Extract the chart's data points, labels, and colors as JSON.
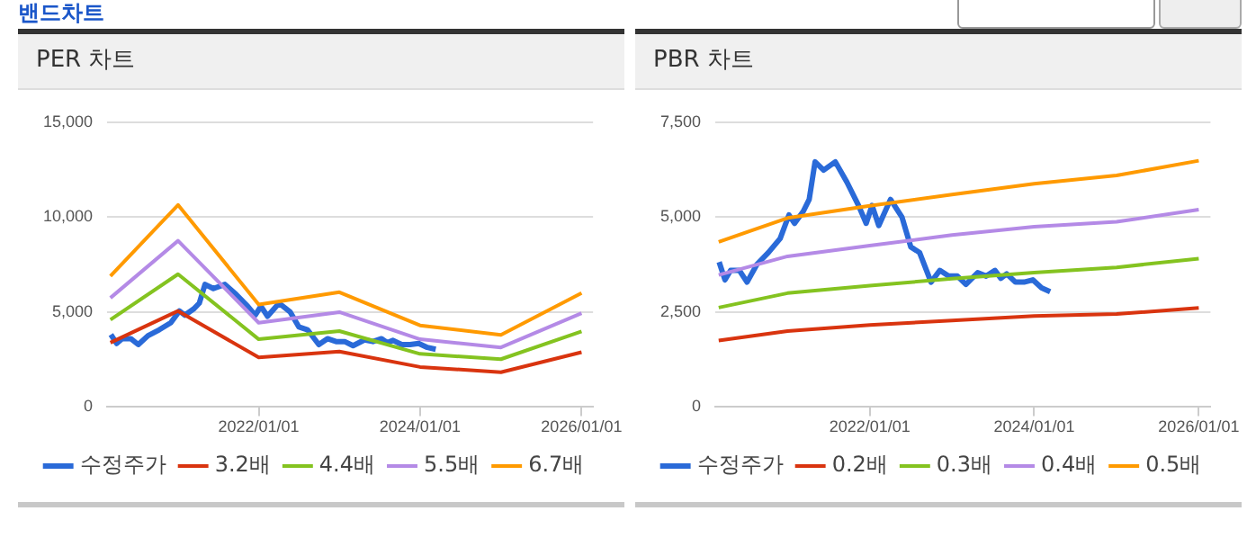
{
  "chart_data": [
    {
      "type": "line",
      "title": "PER 차트",
      "annotations": [
        "밴드차트"
      ],
      "xlim": [
        "2020-02-15",
        "2026-02-22"
      ],
      "xticks": [
        {
          "value": "2022-01-01",
          "label": "2022/01/01"
        },
        {
          "value": "2024-01-01",
          "label": "2024/01/01"
        },
        {
          "value": "2026-01-01",
          "label": "2026/01/01"
        }
      ],
      "ylim": [
        0,
        15000
      ],
      "yticks": [
        {
          "value": 0,
          "label": "0"
        },
        {
          "value": 5000,
          "label": "5,000"
        },
        {
          "value": 10000,
          "label": "10,000"
        },
        {
          "value": 15000,
          "label": "15,000"
        }
      ],
      "grid": "y",
      "legend": "bottom",
      "marker": "none",
      "line_style": "solid",
      "series": [
        {
          "name": "수정주가",
          "color": "#2a6ad8",
          "x": [
            "2020-03-03",
            "2020-03-29",
            "2020-04-23",
            "2020-06-01",
            "2020-07-05",
            "2020-08-18",
            "2020-10-08",
            "2020-11-29",
            "2021-01-07",
            "2021-02-01",
            "2021-03-12",
            "2021-04-07",
            "2021-05-03",
            "2021-06-10",
            "2021-08-01",
            "2021-09-21",
            "2021-11-12",
            "2021-12-16",
            "2022-01-11",
            "2022-02-10",
            "2022-04-03",
            "2022-05-24",
            "2022-07-02",
            "2022-08-10",
            "2022-09-30",
            "2022-11-08",
            "2022-12-17",
            "2023-01-25",
            "2023-03-04",
            "2023-04-25",
            "2023-06-02",
            "2023-07-11",
            "2023-08-06",
            "2023-09-01",
            "2023-10-10",
            "2023-11-17",
            "2023-12-26",
            "2024-02-03",
            "2024-03-12"
          ],
          "values": [
            3820,
            3350,
            3600,
            3600,
            3290,
            3760,
            4070,
            4440,
            5060,
            4840,
            5160,
            5470,
            6460,
            6240,
            6460,
            5930,
            5310,
            4840,
            5310,
            4780,
            5470,
            5000,
            4220,
            4070,
            3290,
            3600,
            3450,
            3450,
            3230,
            3540,
            3450,
            3600,
            3390,
            3510,
            3290,
            3290,
            3350,
            3140,
            3040
          ]
        },
        {
          "name": "3.2배",
          "color": "#d9340f",
          "x": [
            "2020-03-01",
            "2021-01-01",
            "2022-01-01",
            "2023-01-01",
            "2024-01-01",
            "2025-01-01",
            "2026-01-01"
          ],
          "values": [
            3390,
            5060,
            2610,
            2920,
            2110,
            1830,
            2890
          ]
        },
        {
          "name": "4.4배",
          "color": "#84c320",
          "x": [
            "2020-03-01",
            "2021-01-01",
            "2022-01-01",
            "2023-01-01",
            "2024-01-01",
            "2025-01-01",
            "2026-01-01"
          ],
          "values": [
            4600,
            7000,
            3570,
            4000,
            2800,
            2520,
            3980
          ]
        },
        {
          "name": "5.5배",
          "color": "#b48ae6",
          "x": [
            "2020-03-01",
            "2021-01-01",
            "2022-01-01",
            "2023-01-01",
            "2024-01-01",
            "2025-01-01",
            "2026-01-01"
          ],
          "values": [
            5750,
            8760,
            4440,
            5000,
            3570,
            3140,
            4940
          ]
        },
        {
          "name": "6.7배",
          "color": "#ff9a00",
          "x": [
            "2020-03-01",
            "2021-01-01",
            "2022-01-01",
            "2023-01-01",
            "2024-01-01",
            "2025-01-01",
            "2026-01-01"
          ],
          "values": [
            6900,
            10650,
            5400,
            6050,
            4300,
            3800,
            6000
          ]
        }
      ]
    },
    {
      "type": "line",
      "title": "PBR 차트",
      "xlim": [
        "2020-02-15",
        "2026-02-22"
      ],
      "xticks": [
        {
          "value": "2022-01-01",
          "label": "2022/01/01"
        },
        {
          "value": "2024-01-01",
          "label": "2024/01/01"
        },
        {
          "value": "2026-01-01",
          "label": "2026/01/01"
        }
      ],
      "ylim": [
        0,
        7500
      ],
      "yticks": [
        {
          "value": 0,
          "label": "0"
        },
        {
          "value": 2500,
          "label": "2,500"
        },
        {
          "value": 5000,
          "label": "5,000"
        },
        {
          "value": 7500,
          "label": "7,500"
        }
      ],
      "grid": "y",
      "legend": "bottom",
      "marker": "none",
      "line_style": "solid",
      "series": [
        {
          "name": "수정주가",
          "color": "#2a6ad8",
          "x": [
            "2020-03-03",
            "2020-03-29",
            "2020-04-23",
            "2020-06-01",
            "2020-07-05",
            "2020-08-18",
            "2020-10-08",
            "2020-11-29",
            "2021-01-07",
            "2021-02-01",
            "2021-03-12",
            "2021-04-07",
            "2021-05-03",
            "2021-06-10",
            "2021-08-01",
            "2021-09-21",
            "2021-11-12",
            "2021-12-16",
            "2022-01-11",
            "2022-02-10",
            "2022-04-03",
            "2022-05-24",
            "2022-07-02",
            "2022-08-10",
            "2022-09-30",
            "2022-11-08",
            "2022-12-17",
            "2023-01-25",
            "2023-03-04",
            "2023-04-25",
            "2023-06-02",
            "2023-07-11",
            "2023-08-06",
            "2023-09-01",
            "2023-10-10",
            "2023-11-17",
            "2023-12-26",
            "2024-02-03",
            "2024-03-12"
          ],
          "values": [
            3820,
            3350,
            3600,
            3600,
            3290,
            3760,
            4070,
            4440,
            5060,
            4840,
            5160,
            5470,
            6460,
            6240,
            6460,
            5930,
            5310,
            4840,
            5310,
            4780,
            5470,
            5000,
            4220,
            4070,
            3290,
            3600,
            3450,
            3450,
            3230,
            3540,
            3450,
            3600,
            3390,
            3510,
            3290,
            3290,
            3350,
            3140,
            3040
          ]
        },
        {
          "name": "0.2배",
          "color": "#d9340f",
          "x": [
            "2020-03-01",
            "2021-01-01",
            "2022-01-01",
            "2023-01-01",
            "2024-01-01",
            "2025-01-01",
            "2026-01-01"
          ],
          "values": [
            1750,
            2000,
            2160,
            2280,
            2400,
            2450,
            2610
          ]
        },
        {
          "name": "0.3배",
          "color": "#84c320",
          "x": [
            "2020-03-01",
            "2021-01-01",
            "2022-01-01",
            "2023-01-01",
            "2024-01-01",
            "2025-01-01",
            "2026-01-01"
          ],
          "values": [
            2620,
            3000,
            3200,
            3380,
            3540,
            3680,
            3910
          ]
        },
        {
          "name": "0.4배",
          "color": "#b48ae6",
          "x": [
            "2020-03-01",
            "2021-01-01",
            "2022-01-01",
            "2023-01-01",
            "2024-01-01",
            "2025-01-01",
            "2026-01-01"
          ],
          "values": [
            3480,
            3970,
            4250,
            4530,
            4750,
            4880,
            5200
          ]
        },
        {
          "name": "0.5배",
          "color": "#ff9a00",
          "x": [
            "2020-03-01",
            "2021-01-01",
            "2022-01-01",
            "2023-01-01",
            "2024-01-01",
            "2025-01-01",
            "2026-01-01"
          ],
          "values": [
            4350,
            4980,
            5300,
            5600,
            5880,
            6100,
            6490
          ]
        }
      ]
    }
  ]
}
